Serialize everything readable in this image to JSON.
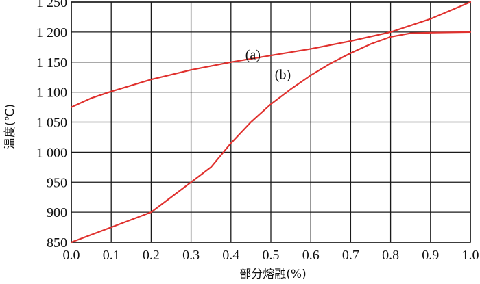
{
  "chart_data": {
    "type": "line",
    "xlabel": "部分熔融(%)",
    "ylabel": "温度(℃)",
    "xlim": [
      0.0,
      1.0
    ],
    "ylim": [
      850,
      1250
    ],
    "x_ticks": [
      0.0,
      0.1,
      0.2,
      0.3,
      0.4,
      0.5,
      0.6,
      0.7,
      0.8,
      0.9,
      1.0
    ],
    "x_tick_labels": [
      "0.0",
      "0.1",
      "0.2",
      "0.3",
      "0.4",
      "0.5",
      "0.6",
      "0.7",
      "0.8",
      "0.9",
      "1.0"
    ],
    "y_ticks": [
      850,
      900,
      950,
      1000,
      1050,
      1100,
      1150,
      1200,
      1250
    ],
    "y_tick_labels": [
      "850",
      "900",
      "950",
      "1 000",
      "1 050",
      "1 100",
      "1 150",
      "1 200",
      "1 250"
    ],
    "grid": true,
    "line_color": "#e0312e",
    "series": [
      {
        "label": "(a)",
        "x": [
          0.0,
          0.05,
          0.1,
          0.2,
          0.3,
          0.4,
          0.5,
          0.6,
          0.7,
          0.8,
          0.9,
          1.0
        ],
        "y": [
          1075,
          1090,
          1101,
          1121,
          1137,
          1150,
          1161,
          1172,
          1185,
          1200,
          1222,
          1250
        ]
      },
      {
        "label": "(b)",
        "x": [
          0.0,
          0.1,
          0.2,
          0.3,
          0.35,
          0.4,
          0.45,
          0.5,
          0.55,
          0.6,
          0.65,
          0.7,
          0.75,
          0.8,
          0.85,
          0.9,
          1.0
        ],
        "y": [
          850,
          875,
          900,
          950,
          975,
          1015,
          1050,
          1080,
          1105,
          1128,
          1148,
          1165,
          1180,
          1192,
          1198,
          1199,
          1200
        ]
      }
    ]
  }
}
